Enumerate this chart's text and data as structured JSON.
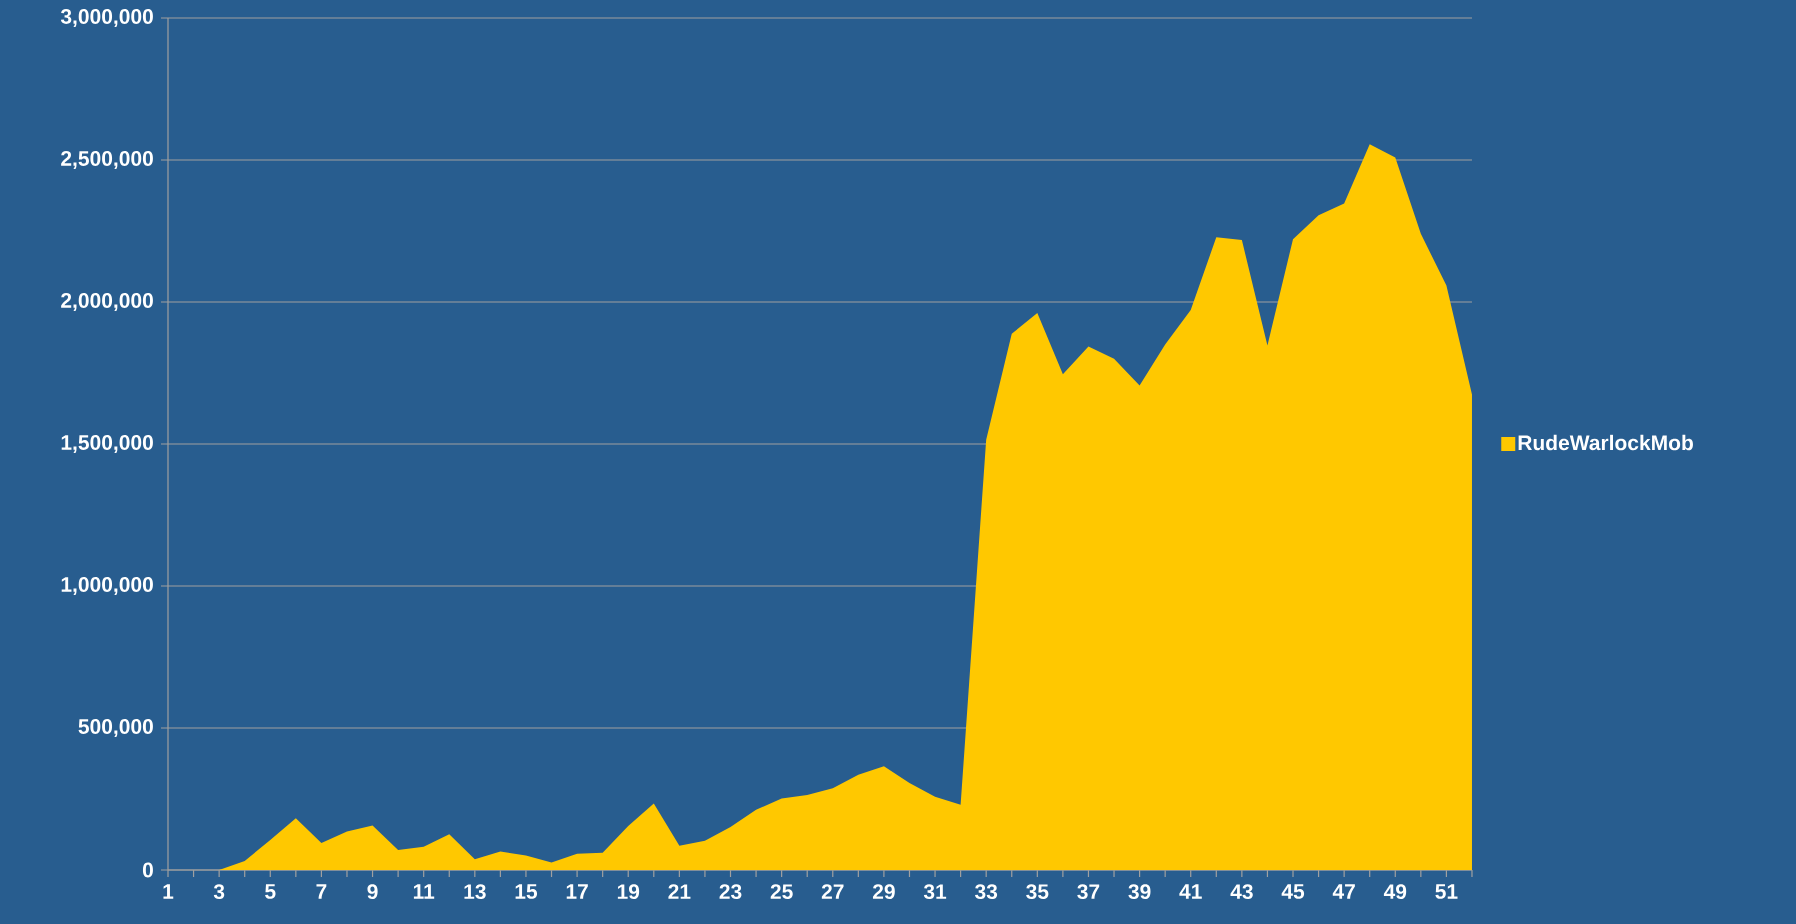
{
  "chart_data": {
    "type": "area",
    "categories": [
      "1",
      null,
      "3",
      null,
      "5",
      null,
      "7",
      null,
      "9",
      null,
      "11",
      null,
      "13",
      null,
      "15",
      null,
      "17",
      null,
      "19",
      null,
      "21",
      null,
      "23",
      null,
      "25",
      null,
      "27",
      null,
      "29",
      null,
      "31",
      null,
      "33",
      null,
      "35",
      null,
      "37",
      null,
      "39",
      null,
      "41",
      null,
      "43",
      null,
      "45",
      null,
      "47",
      null,
      "49",
      null,
      "51",
      null
    ],
    "series": [
      {
        "name": "RudeWarlockMob",
        "color": "#ffc800",
        "values": [
          0,
          0,
          0,
          32000,
          106000,
          182000,
          95000,
          136000,
          157000,
          70000,
          82000,
          126000,
          38000,
          65000,
          51000,
          26000,
          57000,
          61000,
          155000,
          234000,
          85000,
          103000,
          151000,
          212000,
          252000,
          264000,
          288000,
          335000,
          365000,
          306000,
          258000,
          230000,
          1515000,
          1888000,
          1961000,
          1746000,
          1843000,
          1800000,
          1706000,
          1850000,
          1972000,
          2228000,
          2218000,
          1847000,
          2221000,
          2305000,
          2347000,
          2555000,
          2509000,
          2240000,
          2058000,
          1674000
        ]
      }
    ],
    "ylim": [
      0,
      3000000
    ],
    "yticks": [
      {
        "value": 0,
        "label": "0"
      },
      {
        "value": 500000,
        "label": "500,000"
      },
      {
        "value": 1000000,
        "label": "1,000,000"
      },
      {
        "value": 1500000,
        "label": "1,500,000"
      },
      {
        "value": 2000000,
        "label": "2,000,000"
      },
      {
        "value": 2500000,
        "label": "2,500,000"
      },
      {
        "value": 3000000,
        "label": "3,000,000"
      }
    ],
    "grid": "y",
    "legend": "right"
  }
}
